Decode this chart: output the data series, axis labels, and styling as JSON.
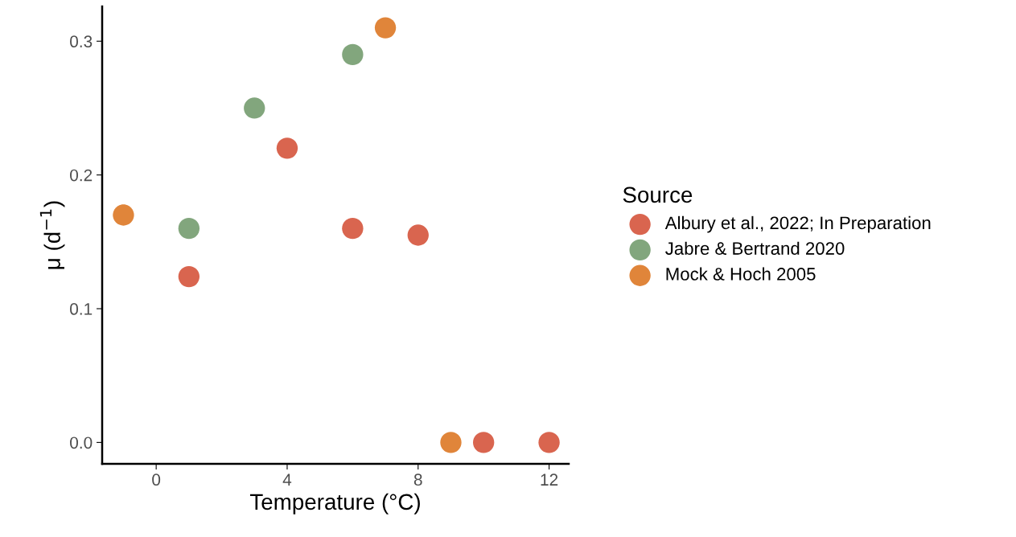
{
  "chart_data": {
    "type": "scatter",
    "xlabel": "Temperature (°C)",
    "ylabel": "μ (d$^{−1}$)",
    "legend_title": "Source",
    "legend": "right",
    "grid": false,
    "marker": "circle",
    "xlim": [
      -1.65,
      12.6
    ],
    "xticks": [
      0,
      4,
      8,
      12
    ],
    "ylim": [
      -0.016,
      0.326
    ],
    "yticks": [
      {
        "value": 0,
        "label": "0.0"
      },
      0.1,
      0.2,
      0.3
    ],
    "series": [
      {
        "name": "Albury et al., 2022; In Preparation",
        "color": "#d9654f",
        "x": [
          1,
          4,
          6,
          8,
          10,
          12
        ],
        "values": [
          0.124,
          0.22,
          0.16,
          0.155,
          0,
          0
        ]
      },
      {
        "name": "Jabre & Bertrand 2020",
        "color": "#82a67d",
        "x": [
          1,
          3,
          6
        ],
        "values": [
          0.16,
          0.25,
          0.29
        ]
      },
      {
        "name": "Mock & Hoch 2005",
        "color": "#e0853a",
        "x": [
          -1,
          7,
          9
        ],
        "values": [
          0.17,
          0.31,
          0
        ]
      }
    ]
  }
}
